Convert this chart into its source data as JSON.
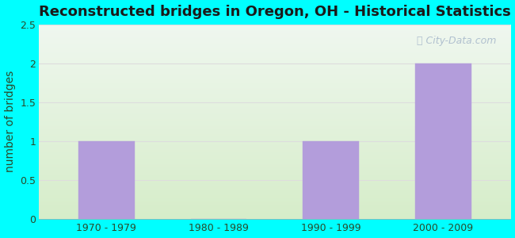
{
  "title": "Reconstructed bridges in Oregon, OH - Historical Statistics",
  "categories": [
    "1970 - 1979",
    "1980 - 1989",
    "1990 - 1999",
    "2000 - 2009"
  ],
  "values": [
    1,
    0,
    1,
    2
  ],
  "bar_color": "#b39ddb",
  "bar_edgecolor": "#b39ddb",
  "ylabel": "number of bridges",
  "ylim": [
    0,
    2.5
  ],
  "yticks": [
    0,
    0.5,
    1,
    1.5,
    2,
    2.5
  ],
  "bg_top": "#f0f0f0",
  "bg_bottom": "#d4edda",
  "outer_background": "#00ffff",
  "title_fontsize": 13,
  "axis_label_fontsize": 10,
  "tick_fontsize": 9,
  "watermark_text": "City-Data.com",
  "watermark_color": "#aabbcc",
  "grid_color": "#dddddd",
  "title_color": "#1a1a1a",
  "label_color": "#2a4a2a"
}
